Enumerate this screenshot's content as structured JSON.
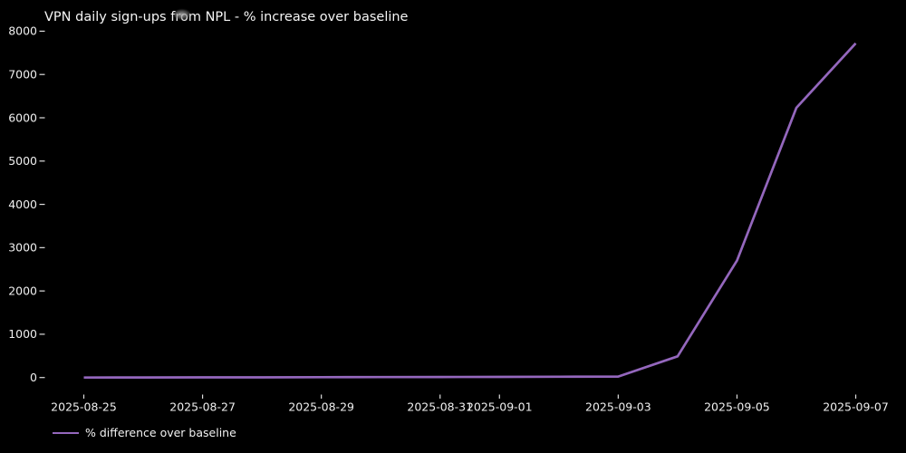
{
  "window": {
    "background": "#000000"
  },
  "chart_data": {
    "type": "line",
    "title": "VPN daily sign-ups from NPL - % increase over baseline",
    "xlabel": "",
    "ylabel": "",
    "x": [
      "2025-08-25",
      "2025-08-26",
      "2025-08-27",
      "2025-08-28",
      "2025-08-29",
      "2025-08-30",
      "2025-08-31",
      "2025-09-01",
      "2025-09-02",
      "2025-09-03",
      "2025-09-04",
      "2025-09-05",
      "2025-09-06",
      "2025-09-07"
    ],
    "series": [
      {
        "name": "% difference over baseline",
        "color": "#9467bd",
        "values": [
          0,
          3,
          5,
          4,
          8,
          10,
          12,
          15,
          18,
          22,
          490,
          2700,
          6230,
          7720
        ]
      }
    ],
    "x_tick_labels": [
      "2025-08-25",
      "2025-08-27",
      "2025-08-29",
      "2025-08-31",
      "2025-09-01",
      "2025-09-03",
      "2025-09-05",
      "2025-09-07"
    ],
    "y_ticks": [
      0,
      1000,
      2000,
      3000,
      4000,
      5000,
      6000,
      7000,
      8000
    ],
    "ylim": [
      -390,
      8110
    ],
    "grid": false,
    "legend_position": "lower-left-below-axis",
    "text_color": "#eeeeee",
    "background_color": "#000000"
  },
  "legend": {
    "entry_label": "% difference over baseline"
  },
  "artifacts": {
    "cursor_smudge": "gray-blob-over-title"
  }
}
